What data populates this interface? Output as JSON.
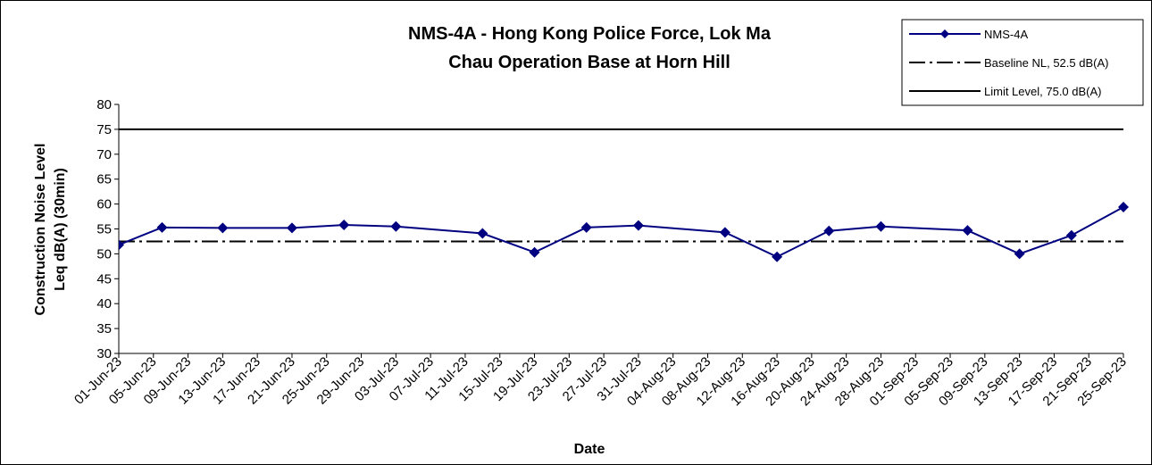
{
  "chart_data": {
    "type": "line",
    "title": [
      "NMS-4A - Hong Kong Police Force, Lok Ma",
      "Chau Operation Base at Horn Hill"
    ],
    "x_label": "Date",
    "y_label": [
      "Construction Noise Level",
      "Leq dB(A) (30min)"
    ],
    "x": [
      "2023-06-01",
      "2023-06-06",
      "2023-06-13",
      "2023-06-21",
      "2023-06-27",
      "2023-07-03",
      "2023-07-13",
      "2023-07-19",
      "2023-07-25",
      "2023-07-31",
      "2023-08-10",
      "2023-08-16",
      "2023-08-22",
      "2023-08-28",
      "2023-09-07",
      "2023-09-13",
      "2023-09-19",
      "2023-09-25"
    ],
    "series": [
      {
        "name": "NMS-4A",
        "color": "#000080",
        "marker": "diamond",
        "values": [
          51.8,
          55.3,
          55.2,
          55.2,
          55.8,
          55.5,
          54.1,
          50.3,
          55.3,
          55.7,
          54.3,
          49.4,
          54.6,
          55.5,
          54.7,
          50.0,
          53.7,
          59.4
        ]
      }
    ],
    "reference_lines": [
      {
        "name": "Baseline NL, 52.5 dB(A)",
        "value": 52.5,
        "style": "dashdot",
        "color": "#000000"
      },
      {
        "name": "Limit Level, 75.0 dB(A)",
        "value": 75.0,
        "style": "solid",
        "color": "#000000"
      }
    ],
    "xlim": [
      "2023-06-01",
      "2023-09-25"
    ],
    "xticks": [
      {
        "value": "2023-06-01",
        "label": "01-Jun-23"
      },
      {
        "value": "2023-06-05",
        "label": "05-Jun-23"
      },
      {
        "value": "2023-06-09",
        "label": "09-Jun-23"
      },
      {
        "value": "2023-06-13",
        "label": "13-Jun-23"
      },
      {
        "value": "2023-06-17",
        "label": "17-Jun-23"
      },
      {
        "value": "2023-06-21",
        "label": "21-Jun-23"
      },
      {
        "value": "2023-06-25",
        "label": "25-Jun-23"
      },
      {
        "value": "2023-06-29",
        "label": "29-Jun-23"
      },
      {
        "value": "2023-07-03",
        "label": "03-Jul-23"
      },
      {
        "value": "2023-07-07",
        "label": "07-Jul-23"
      },
      {
        "value": "2023-07-11",
        "label": "11-Jul-23"
      },
      {
        "value": "2023-07-15",
        "label": "15-Jul-23"
      },
      {
        "value": "2023-07-19",
        "label": "19-Jul-23"
      },
      {
        "value": "2023-07-23",
        "label": "23-Jul-23"
      },
      {
        "value": "2023-07-27",
        "label": "27-Jul-23"
      },
      {
        "value": "2023-07-31",
        "label": "31-Jul-23"
      },
      {
        "value": "2023-08-04",
        "label": "04-Aug-23"
      },
      {
        "value": "2023-08-08",
        "label": "08-Aug-23"
      },
      {
        "value": "2023-08-12",
        "label": "12-Aug-23"
      },
      {
        "value": "2023-08-16",
        "label": "16-Aug-23"
      },
      {
        "value": "2023-08-20",
        "label": "20-Aug-23"
      },
      {
        "value": "2023-08-24",
        "label": "24-Aug-23"
      },
      {
        "value": "2023-08-28",
        "label": "28-Aug-23"
      },
      {
        "value": "2023-09-01",
        "label": "01-Sep-23"
      },
      {
        "value": "2023-09-05",
        "label": "05-Sep-23"
      },
      {
        "value": "2023-09-09",
        "label": "09-Sep-23"
      },
      {
        "value": "2023-09-13",
        "label": "13-Sep-23"
      },
      {
        "value": "2023-09-17",
        "label": "17-Sep-23"
      },
      {
        "value": "2023-09-21",
        "label": "21-Sep-23"
      },
      {
        "value": "2023-09-25",
        "label": "25-Sep-23"
      }
    ],
    "ylim": [
      30,
      80
    ],
    "yticks": [
      30,
      35,
      40,
      45,
      50,
      55,
      60,
      65,
      70,
      75,
      80
    ],
    "grid": false,
    "legend": "top-right"
  }
}
